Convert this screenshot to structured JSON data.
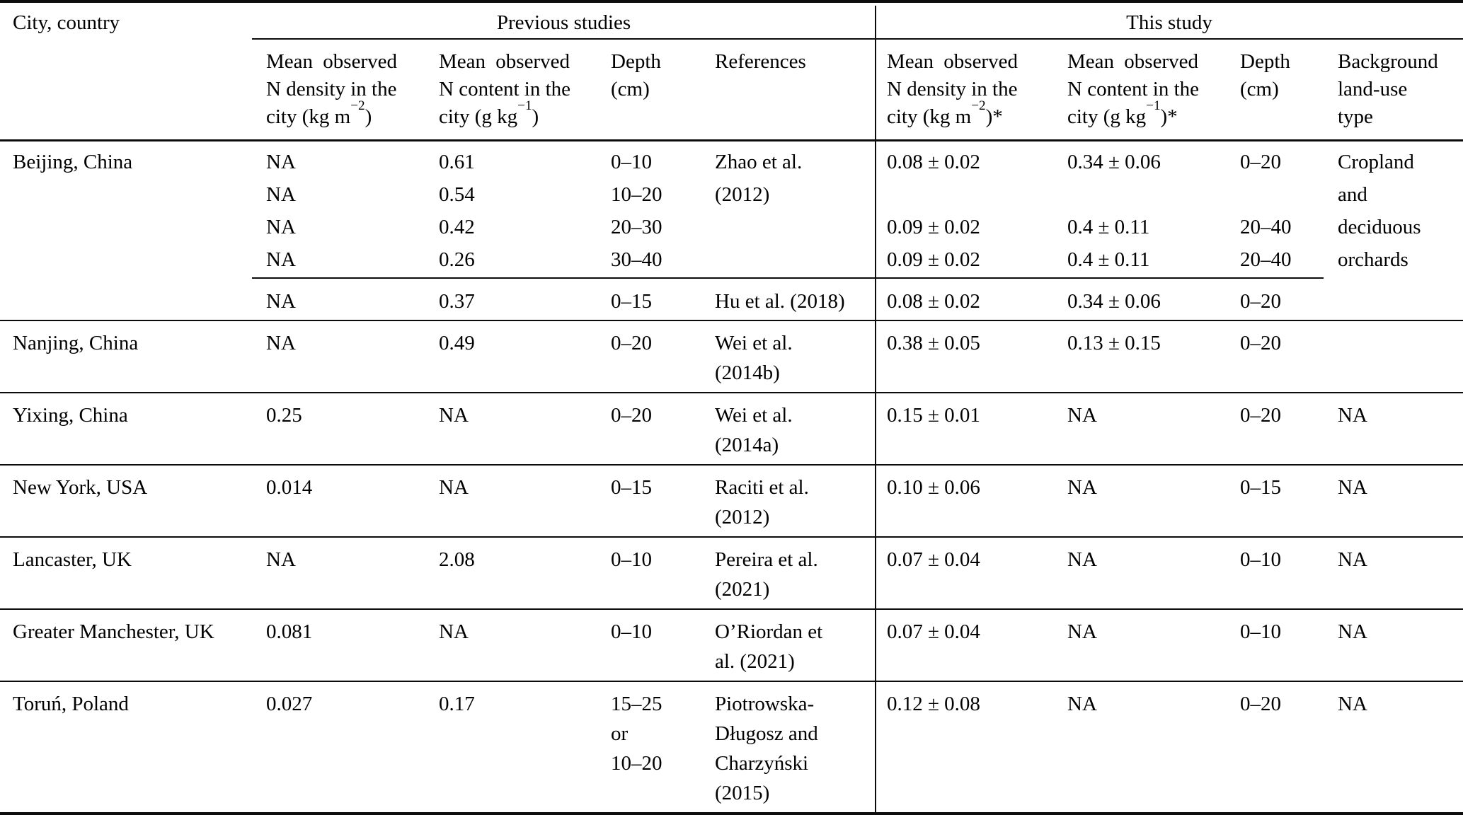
{
  "table": {
    "corner_header": "City, country",
    "groups": {
      "previous": "Previous studies",
      "this_study": "This study"
    },
    "headers": {
      "prev_density": {
        "l1": "Mean observed",
        "l2": "N density in the",
        "unit_pre": "city (kg m",
        "unit_sup": "−2",
        "unit_post": ")"
      },
      "prev_content": {
        "l1": "Mean observed",
        "l2": "N content in the",
        "unit_pre": "city (g kg",
        "unit_sup": "−1",
        "unit_post": ")"
      },
      "prev_depth": {
        "l1": "Depth",
        "l2": "(cm)"
      },
      "references": "References",
      "this_density": {
        "l1": "Mean observed",
        "l2": "N density in the",
        "unit_pre": "city (kg m",
        "unit_sup": "−2",
        "unit_post": ")*"
      },
      "this_content": {
        "l1": "Mean observed",
        "l2": "N content in the",
        "unit_pre": "city (g kg",
        "unit_sup": "−1",
        "unit_post": ")*"
      },
      "this_depth": {
        "l1": "Depth",
        "l2": "(cm)"
      },
      "background": {
        "l1": "Background",
        "l2": "land-use",
        "l3": "type"
      }
    },
    "beijing": {
      "city": "Beijing, China",
      "zhao_rows": [
        {
          "p_density": "NA",
          "p_content": "0.61",
          "p_depth": "0–10",
          "t_density": "0.08 ± 0.02",
          "t_content": "0.34 ± 0.06",
          "t_depth": "0–20"
        },
        {
          "p_density": "NA",
          "p_content": "0.54",
          "p_depth": "10–20",
          "t_density": "",
          "t_content": "",
          "t_depth": ""
        },
        {
          "p_density": "NA",
          "p_content": "0.42",
          "p_depth": "20–30",
          "t_density": "0.09 ± 0.02",
          "t_content": "0.4 ± 0.11",
          "t_depth": "20–40"
        },
        {
          "p_density": "NA",
          "p_content": "0.26",
          "p_depth": "30–40",
          "t_density": "0.09 ± 0.02",
          "t_content": "0.4 ± 0.11",
          "t_depth": "20–40"
        }
      ],
      "zhao_ref": [
        "Zhao et al.",
        "(2012)"
      ],
      "hu_row": {
        "p_density": "NA",
        "p_content": "0.37",
        "p_depth": "0–15",
        "ref": "Hu et al. (2018)",
        "t_density": "0.08 ± 0.02",
        "t_content": "0.34 ± 0.06",
        "t_depth": "0–20"
      },
      "background": [
        "Cropland",
        "and",
        "deciduous",
        "orchards"
      ]
    },
    "rows": [
      {
        "city": "Nanjing, China",
        "p_density": "NA",
        "p_content": "0.49",
        "p_depth": [
          "0–20"
        ],
        "ref": [
          "Wei et al.",
          "(2014b)"
        ],
        "t_density": "0.38 ± 0.05",
        "t_content": "0.13 ± 0.15",
        "t_depth": "0–20",
        "background": ""
      },
      {
        "city": "Yixing, China",
        "p_density": "0.25",
        "p_content": "NA",
        "p_depth": [
          "0–20"
        ],
        "ref": [
          "Wei et al.",
          "(2014a)"
        ],
        "t_density": "0.15 ± 0.01",
        "t_content": "NA",
        "t_depth": "0–20",
        "background": "NA"
      },
      {
        "city": "New York, USA",
        "p_density": "0.014",
        "p_content": "NA",
        "p_depth": [
          "0–15"
        ],
        "ref": [
          "Raciti et al.",
          "(2012)"
        ],
        "t_density": "0.10 ± 0.06",
        "t_content": "NA",
        "t_depth": "0–15",
        "background": "NA"
      },
      {
        "city": "Lancaster, UK",
        "p_density": "NA",
        "p_content": "2.08",
        "p_depth": [
          "0–10"
        ],
        "ref": [
          "Pereira et al.",
          "(2021)"
        ],
        "t_density": "0.07 ± 0.04",
        "t_content": "NA",
        "t_depth": "0–10",
        "background": "NA"
      },
      {
        "city": "Greater Manchester, UK",
        "p_density": "0.081",
        "p_content": "NA",
        "p_depth": [
          "0–10"
        ],
        "ref": [
          "O’Riordan et",
          "al. (2021)"
        ],
        "t_density": "0.07 ± 0.04",
        "t_content": "NA",
        "t_depth": "0–10",
        "background": "NA"
      },
      {
        "city": "Toruń, Poland",
        "p_density": "0.027",
        "p_content": "0.17",
        "p_depth": [
          "15–25",
          "or",
          "10–20"
        ],
        "ref": [
          "Piotrowska-",
          "Długosz and",
          "Charzyński",
          "(2015)"
        ],
        "t_density": "0.12 ± 0.08",
        "t_content": "NA",
        "t_depth": "0–20",
        "background": "NA"
      }
    ]
  }
}
